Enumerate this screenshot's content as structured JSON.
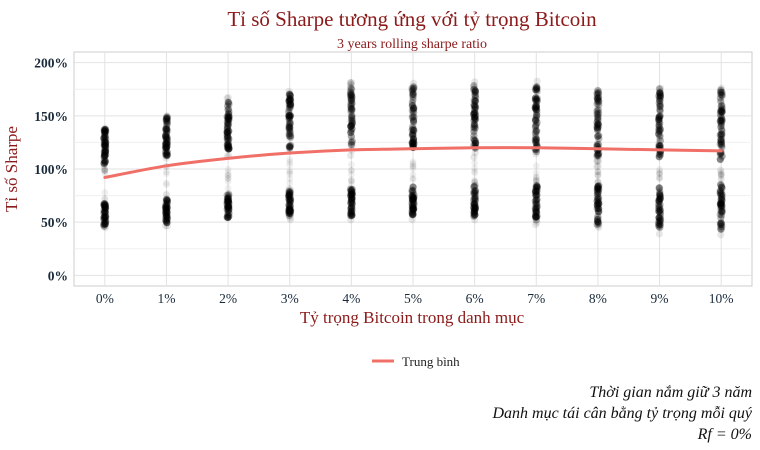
{
  "chart_data": {
    "type": "scatter",
    "title": "Tỉ số Sharpe tương ứng với tỷ trọng Bitcoin",
    "subtitle": "3 years rolling sharpe ratio",
    "xlabel": "Tỷ trọng Bitcoin trong danh mục",
    "ylabel": "Tỉ số Sharpe",
    "categories": [
      "0%",
      "1%",
      "2%",
      "3%",
      "4%",
      "5%",
      "6%",
      "7%",
      "8%",
      "9%",
      "10%"
    ],
    "ylim": [
      -0.1,
      2.1
    ],
    "yticks": [
      0,
      0.5,
      1.0,
      1.5,
      2.0
    ],
    "ytick_labels": [
      "0%",
      "50%",
      "100%",
      "150%",
      "200%"
    ],
    "grid": true,
    "scatter": {
      "name": "",
      "color": "#000000",
      "point_ranges": [
        {
          "high_min": 1.0,
          "high_max": 1.42,
          "low_min": 0.42,
          "low_max": 0.7
        },
        {
          "high_min": 1.05,
          "high_max": 1.57,
          "low_min": 0.46,
          "low_max": 0.74
        },
        {
          "high_min": 1.1,
          "high_max": 1.69,
          "low_min": 0.5,
          "low_max": 0.78
        },
        {
          "high_min": 1.12,
          "high_max": 1.76,
          "low_min": 0.52,
          "low_max": 0.82
        },
        {
          "high_min": 1.12,
          "high_max": 1.82,
          "low_min": 0.52,
          "low_max": 0.85
        },
        {
          "high_min": 1.1,
          "high_max": 1.85,
          "low_min": 0.52,
          "low_max": 0.86
        },
        {
          "high_min": 1.08,
          "high_max": 1.85,
          "low_min": 0.5,
          "low_max": 0.87
        },
        {
          "high_min": 1.05,
          "high_max": 1.84,
          "low_min": 0.46,
          "low_max": 0.88
        },
        {
          "high_min": 1.02,
          "high_max": 1.83,
          "low_min": 0.42,
          "low_max": 0.88
        },
        {
          "high_min": 1.0,
          "high_max": 1.82,
          "low_min": 0.38,
          "low_max": 0.89
        },
        {
          "high_min": 0.98,
          "high_max": 1.81,
          "low_min": 0.35,
          "low_max": 0.9
        }
      ]
    },
    "series": [
      {
        "name": "Trung bình",
        "color": "#f07068",
        "type": "line",
        "values": [
          0.92,
          1.03,
          1.1,
          1.15,
          1.18,
          1.19,
          1.2,
          1.2,
          1.19,
          1.18,
          1.17
        ]
      }
    ],
    "legend": {
      "position": "bottom",
      "label": "Trung bình"
    }
  },
  "caption": {
    "line1": "Thời gian nắm giữ 3 năm",
    "line2": "Danh mục tái cân bằng tỷ trọng mỗi quý",
    "line3": "Rf = 0%"
  }
}
